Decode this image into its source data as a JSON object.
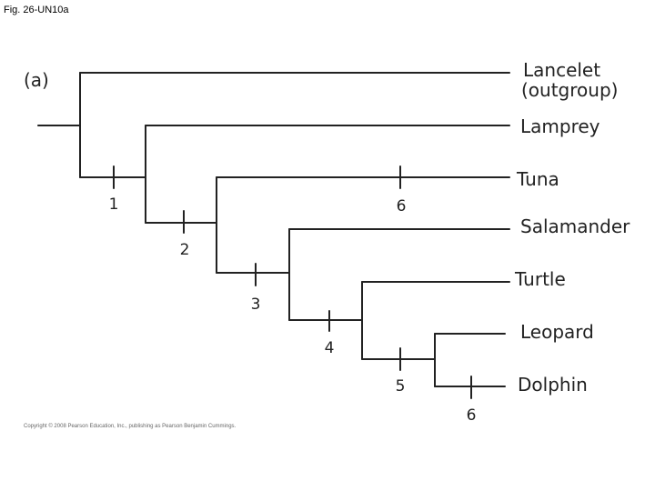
{
  "figure_label": "Fig. 26-UN10a",
  "panel_label": "(a)",
  "taxa": [
    "Lancelet",
    "Lamprey",
    "Tuna",
    "Salamander",
    "Turtle",
    "Leopard",
    "Dolphin"
  ],
  "outgroup_note": "(outgroup)",
  "characters": [
    "1",
    "2",
    "3",
    "4",
    "5",
    "6",
    "6"
  ],
  "copyright": "Copyright © 2008 Pearson Education, Inc., publishing as Pearson Benjamin Cummings."
}
